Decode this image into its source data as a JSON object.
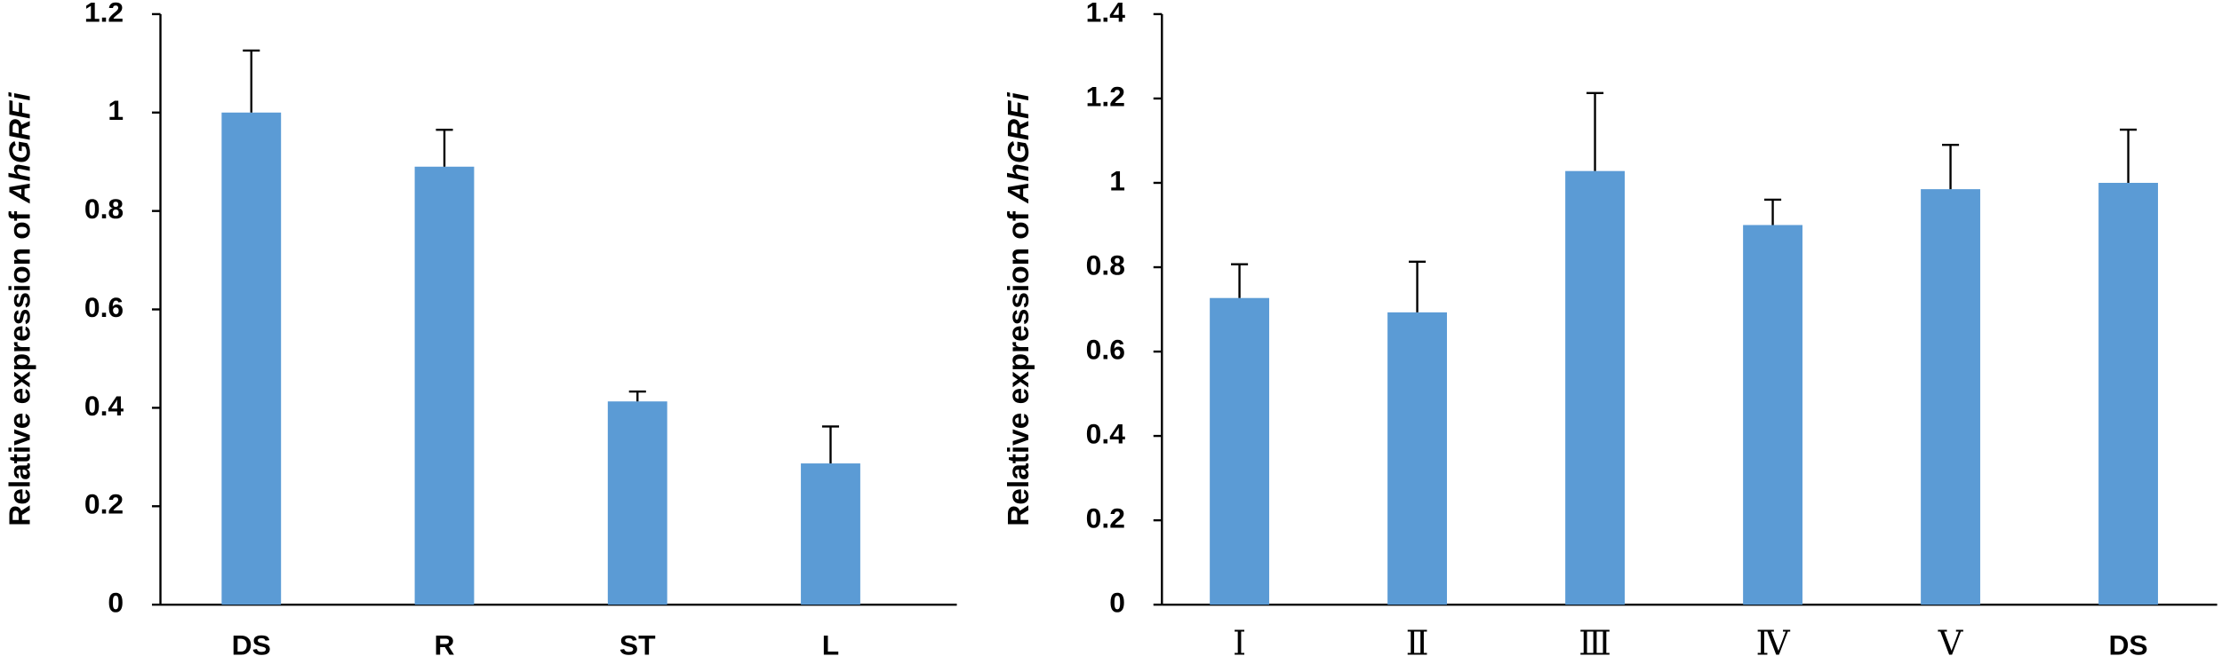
{
  "chart_data": [
    {
      "type": "bar",
      "ylabel_prefix": "Relative expression of",
      "ylabel_gene": "AhGRFi",
      "categories": [
        "DS",
        "R",
        "ST",
        "L"
      ],
      "values": [
        1.0,
        0.89,
        0.413,
        0.287
      ],
      "errors": [
        0.126,
        0.075,
        0.02,
        0.075
      ],
      "color": "#5b9bd5",
      "ylim": [
        0,
        1.2
      ],
      "yticks": [
        0,
        0.2,
        0.4,
        0.6,
        0.8,
        1,
        1.2
      ],
      "grid": false
    },
    {
      "type": "bar",
      "ylabel_prefix": "Relative expression of",
      "ylabel_gene": "AhGRFi",
      "categories": [
        "Ⅰ",
        "Ⅱ",
        "Ⅲ",
        "Ⅳ",
        "Ⅴ",
        "DS"
      ],
      "values": [
        0.727,
        0.693,
        1.028,
        0.9,
        0.985,
        1.0
      ],
      "errors": [
        0.08,
        0.12,
        0.185,
        0.06,
        0.105,
        0.126
      ],
      "color": "#5b9bd5",
      "ylim": [
        0,
        1.4
      ],
      "yticks": [
        0,
        0.2,
        0.4,
        0.6,
        0.8,
        1,
        1.2,
        1.4
      ],
      "grid": false
    }
  ]
}
